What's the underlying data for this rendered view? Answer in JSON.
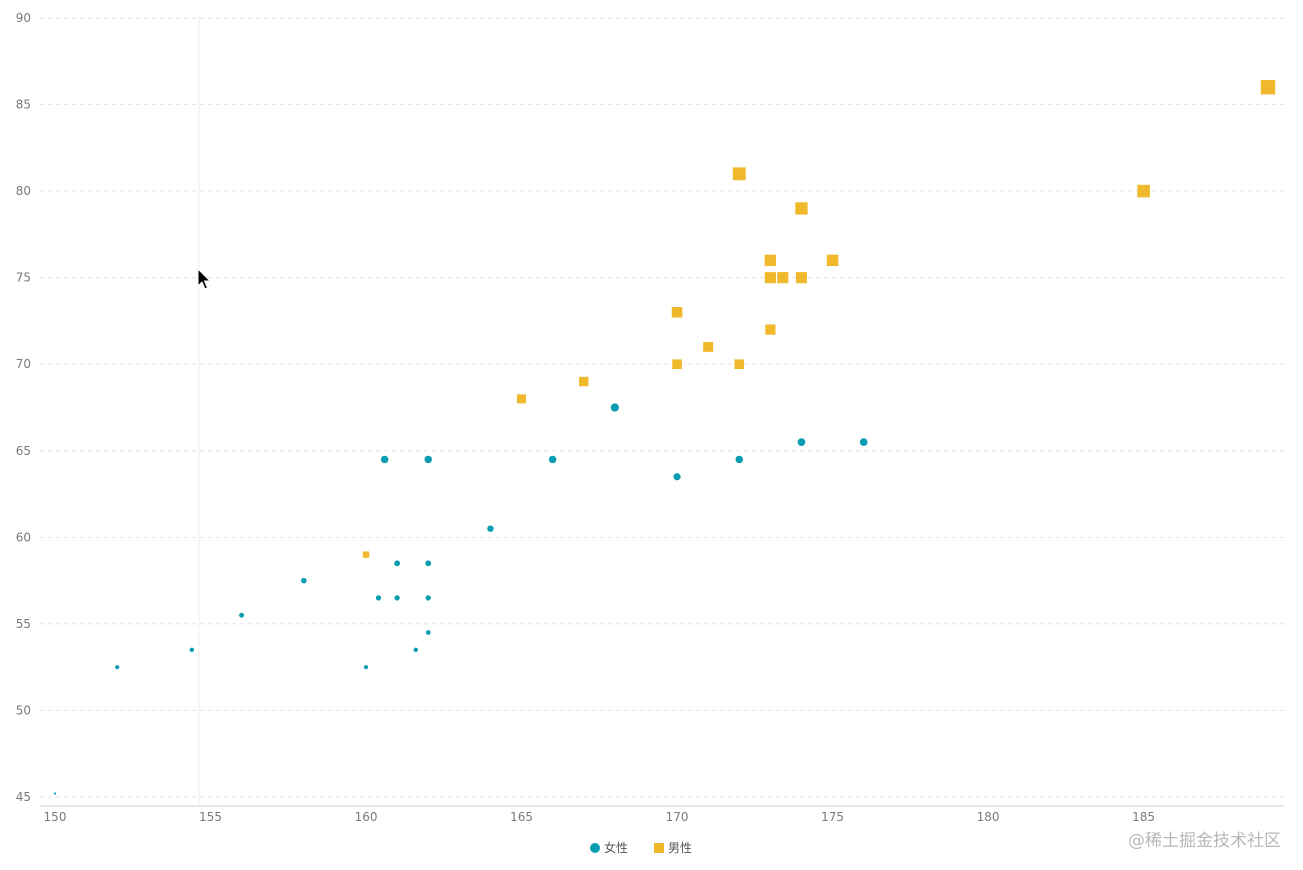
{
  "chart_data": {
    "type": "scatter",
    "title": "",
    "xlabel": "",
    "ylabel": "",
    "xlim": [
      150,
      189
    ],
    "ylim": [
      45,
      90
    ],
    "x_ticks": [
      150,
      155,
      160,
      165,
      170,
      175,
      180,
      185
    ],
    "y_ticks": [
      45,
      50,
      55,
      60,
      65,
      70,
      75,
      80,
      85,
      90
    ],
    "grid": "horizontal-dashed",
    "legend_position": "bottom-center",
    "series": [
      {
        "name": "女性",
        "shape": "circle",
        "color": "#0a9db2",
        "points": [
          [
            150,
            45.2
          ],
          [
            152,
            52.5
          ],
          [
            154.4,
            53.5
          ],
          [
            156,
            55.5
          ],
          [
            158,
            57.5
          ],
          [
            160,
            52.5
          ],
          [
            160.4,
            56.5
          ],
          [
            161,
            56.5
          ],
          [
            161,
            58.5
          ],
          [
            161.6,
            53.5
          ],
          [
            162,
            54.5
          ],
          [
            162,
            56.5
          ],
          [
            162,
            58.5
          ],
          [
            160.6,
            64.5
          ],
          [
            162,
            64.5
          ],
          [
            164,
            60.5
          ],
          [
            166,
            64.5
          ],
          [
            168,
            67.5
          ],
          [
            170,
            63.5
          ],
          [
            172,
            64.5
          ],
          [
            174,
            65.5
          ],
          [
            176,
            65.5
          ]
        ]
      },
      {
        "name": "男性",
        "shape": "square",
        "color": "#f0b82b",
        "points": [
          [
            160,
            59
          ],
          [
            165,
            68
          ],
          [
            167,
            69
          ],
          [
            170,
            70
          ],
          [
            170,
            73
          ],
          [
            171,
            71
          ],
          [
            172,
            70
          ],
          [
            172,
            81
          ],
          [
            173,
            72
          ],
          [
            173,
            75
          ],
          [
            173,
            76
          ],
          [
            173.4,
            75
          ],
          [
            174,
            75
          ],
          [
            174,
            79
          ],
          [
            175,
            76
          ],
          [
            185,
            80
          ],
          [
            189,
            86
          ]
        ]
      }
    ]
  },
  "watermark": "@稀土掘金技术社区"
}
